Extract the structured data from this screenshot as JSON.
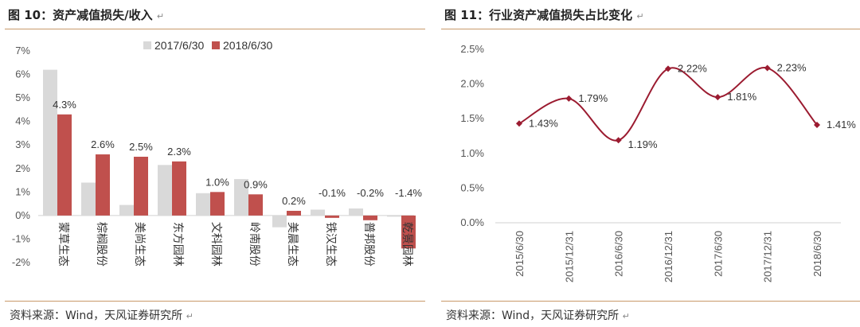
{
  "colors": {
    "series_2017": "#d9d9d9",
    "series_2018": "#c0504d",
    "line": "#9b1b30",
    "rule": "#c89a6a"
  },
  "left": {
    "title": "图 10：资产减值损失/收入",
    "source": "资料来源：Wind，天风证券研究所"
  },
  "right": {
    "title": "图 11：行业资产减值损失占比变化",
    "source": "资料来源：Wind，天风证券研究所"
  },
  "marks": {
    "para": "↵"
  },
  "chart_data": [
    {
      "type": "bar",
      "categories": [
        "蒙草生态",
        "棕榈股份",
        "美尚生态",
        "东方园林",
        "文科园林",
        "岭南股份",
        "美晨生态",
        "铁汉生态",
        "普邦股份",
        "乾景园林"
      ],
      "series": [
        {
          "name": "2017/6/30",
          "values": [
            6.2,
            1.4,
            0.45,
            2.15,
            0.95,
            1.55,
            -0.5,
            0.25,
            0.3,
            -0.05
          ]
        },
        {
          "name": "2018/6/30",
          "values": [
            4.3,
            2.6,
            2.5,
            2.3,
            1.0,
            0.9,
            0.2,
            -0.1,
            -0.2,
            -1.4
          ]
        }
      ],
      "data_labels": [
        "4.3%",
        "2.6%",
        "2.5%",
        "2.3%",
        "1.0%",
        "0.9%",
        "0.2%",
        "-0.1%",
        "-0.2%",
        "-1.4%"
      ],
      "yticks": [
        "7%",
        "6%",
        "5%",
        "4%",
        "3%",
        "2%",
        "1%",
        "0%",
        "-1%",
        "-2%"
      ],
      "ylim": [
        -2,
        7
      ],
      "legend": "top-right",
      "grid": false
    },
    {
      "type": "line",
      "x": [
        "2015/6/30",
        "2015/12/31",
        "2016/6/30",
        "2016/12/31",
        "2017/6/30",
        "2017/12/31",
        "2018/6/30"
      ],
      "values": [
        1.43,
        1.79,
        1.19,
        2.22,
        1.81,
        2.23,
        1.41
      ],
      "data_labels": [
        "1.43%",
        "1.79%",
        "1.19%",
        "2.22%",
        "1.81%",
        "2.23%",
        "1.41%"
      ],
      "yticks": [
        "2.5%",
        "2.0%",
        "1.5%",
        "1.0%",
        "0.5%",
        "0.0%"
      ],
      "ylim": [
        0,
        2.5
      ],
      "grid": false
    }
  ]
}
